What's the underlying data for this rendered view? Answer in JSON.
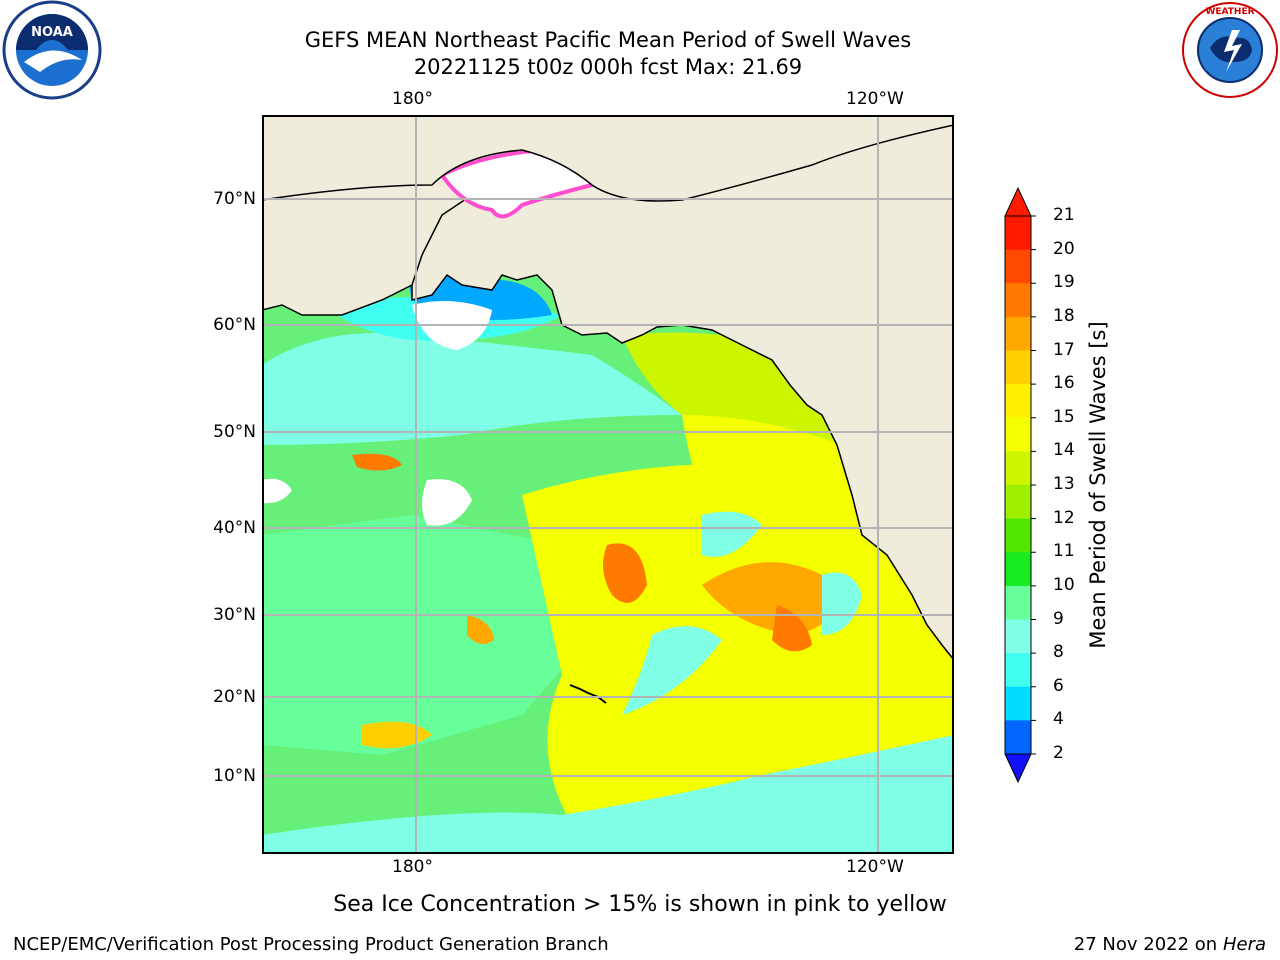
{
  "header": {
    "title": "GEFS MEAN Northeast Pacific Mean Period of Swell Waves",
    "subtitle": "20221125 t00z 000h fcst   Max: 21.69"
  },
  "logos": {
    "left": "NOAA",
    "right": "NATIONAL WEATHER SERVICE"
  },
  "map": {
    "lon_labels": [
      "180°",
      "120°W"
    ],
    "lat_labels": [
      "70°N",
      "60°N",
      "50°N",
      "40°N",
      "30°N",
      "20°N",
      "10°N"
    ],
    "colors": {
      "land": "#efecdc",
      "grid": "#b4b4b4",
      "coast": "#000000",
      "ice_edge": "#ff4fcf"
    }
  },
  "colorbar": {
    "label": "Mean Period of Swell Waves [s]",
    "ticks": [
      "21",
      "20",
      "19",
      "18",
      "17",
      "16",
      "15",
      "14",
      "13",
      "12",
      "11",
      "10",
      "9",
      "8",
      "6",
      "4",
      "2"
    ],
    "colors": [
      "#ff1a00",
      "#ff4800",
      "#ff7a00",
      "#ffa800",
      "#ffd000",
      "#fff000",
      "#f4ff00",
      "#ccf500",
      "#9ff000",
      "#50e800",
      "#18ec20",
      "#66ff9a",
      "#80ffe6",
      "#40fff0",
      "#00dcff",
      "#0066ff",
      "#1010ff"
    ]
  },
  "note": "Sea Ice Concentration > 15% is shown in pink to yellow",
  "footer": {
    "left": "NCEP/EMC/Verification Post Processing Product Generation Branch",
    "date": "27 Nov 2022 on",
    "system": "Hera"
  }
}
